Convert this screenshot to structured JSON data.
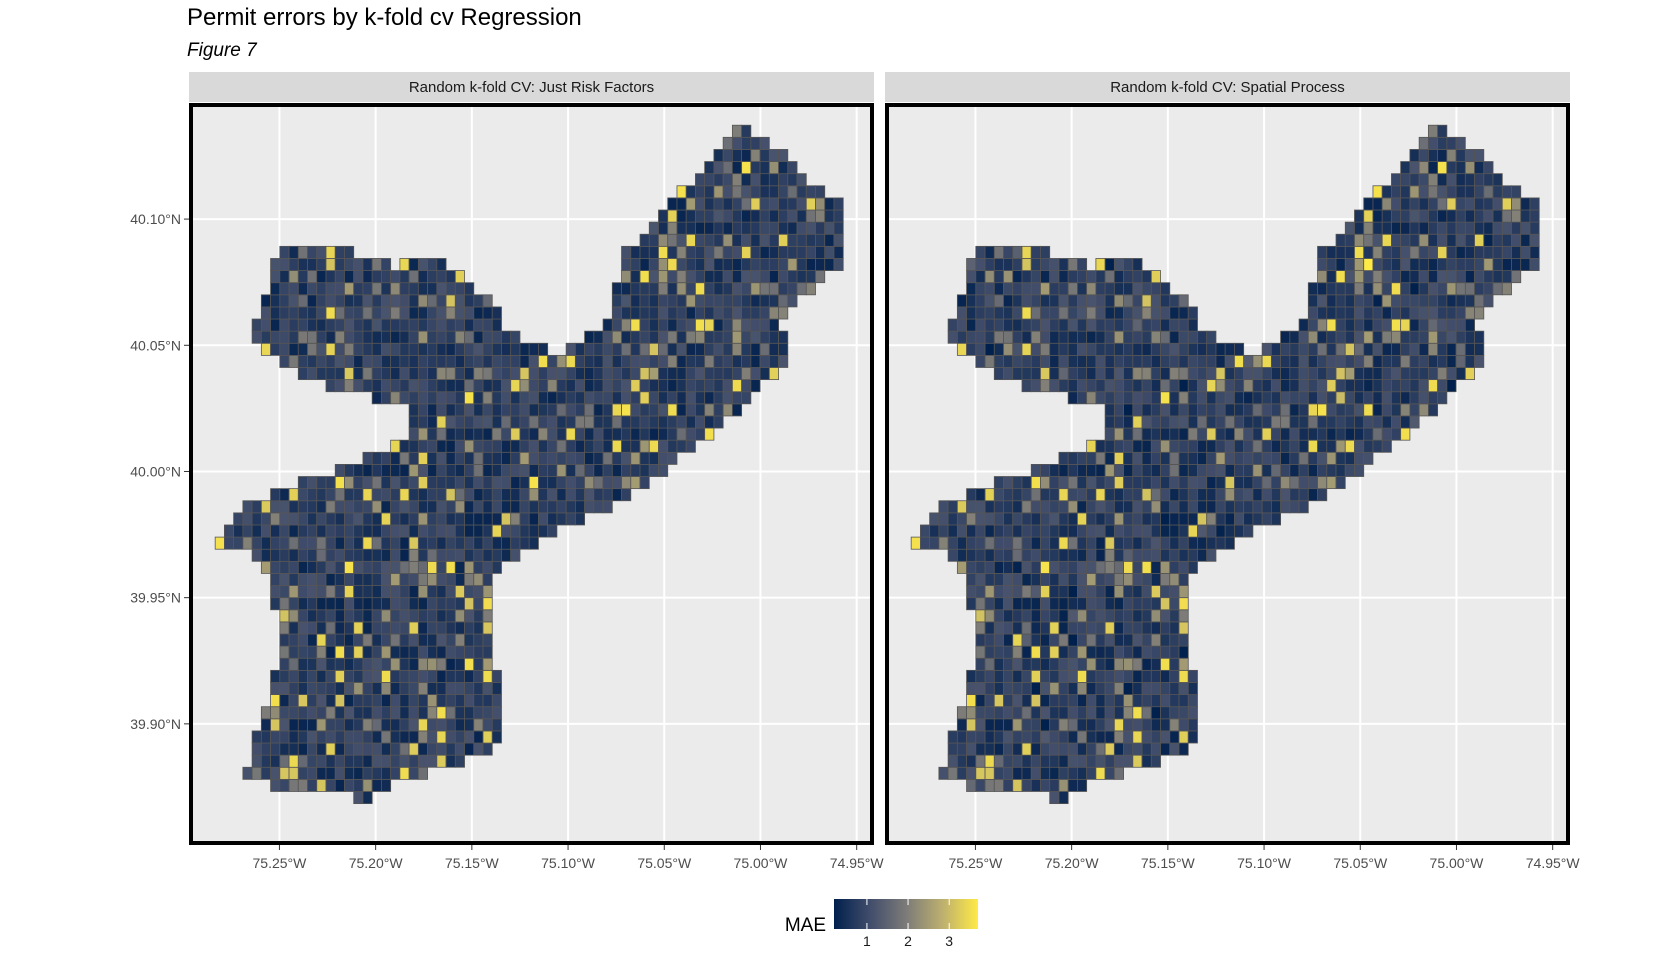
{
  "chart_data": {
    "type": "heatmap",
    "title": "Permit errors by k-fold cv Regression",
    "subtitle": "Figure 7",
    "facets": [
      "Random k-fold CV: Just Risk Factors",
      "Random k-fold CV: Spatial Process"
    ],
    "x_ticks": [
      {
        "value": -75.25,
        "label": "75.25°W"
      },
      {
        "value": -75.2,
        "label": "75.20°W"
      },
      {
        "value": -75.15,
        "label": "75.15°W"
      },
      {
        "value": -75.1,
        "label": "75.10°W"
      },
      {
        "value": -75.05,
        "label": "75.05°W"
      },
      {
        "value": -75.0,
        "label": "75.00°W"
      },
      {
        "value": -74.95,
        "label": "74.95°W"
      }
    ],
    "y_ticks": [
      {
        "value": 40.1,
        "label": "40.10°N"
      },
      {
        "value": 40.05,
        "label": "40.05°N"
      },
      {
        "value": 40.0,
        "label": "40.00°N"
      },
      {
        "value": 39.95,
        "label": "39.95°N"
      },
      {
        "value": 39.9,
        "label": "39.90°N"
      }
    ],
    "xlim": [
      -75.297,
      -74.941
    ],
    "ylim": [
      39.852,
      40.146
    ],
    "grid": true,
    "fill_variable": "MAE",
    "legend": {
      "title": "MAE",
      "position": "bottom",
      "ticks": [
        1,
        2,
        3
      ],
      "range": [
        0.2,
        3.7
      ],
      "colors": [
        "#00204d",
        "#414d6b",
        "#7c7b78",
        "#bcaf6f",
        "#ffea46"
      ]
    },
    "region_outline": [
      [
        -75.25,
        40.087
      ],
      [
        -75.225,
        40.092
      ],
      [
        -75.205,
        40.085
      ],
      [
        -75.19,
        40.081
      ],
      [
        -75.17,
        40.086
      ],
      [
        -75.155,
        40.077
      ],
      [
        -75.14,
        40.068
      ],
      [
        -75.13,
        40.055
      ],
      [
        -75.105,
        40.047
      ],
      [
        -75.08,
        40.058
      ],
      [
        -75.07,
        40.087
      ],
      [
        -75.05,
        40.104
      ],
      [
        -75.03,
        40.12
      ],
      [
        -75.012,
        40.137
      ],
      [
        -74.995,
        40.13
      ],
      [
        -74.975,
        40.116
      ],
      [
        -74.957,
        40.107
      ],
      [
        -74.955,
        40.085
      ],
      [
        -74.975,
        40.07
      ],
      [
        -74.99,
        40.06
      ],
      [
        -74.983,
        40.044
      ],
      [
        -75.0,
        40.034
      ],
      [
        -75.02,
        40.018
      ],
      [
        -75.045,
        40.003
      ],
      [
        -75.062,
        39.994
      ],
      [
        -75.08,
        39.983
      ],
      [
        -75.1,
        39.98
      ],
      [
        -75.12,
        39.968
      ],
      [
        -75.14,
        39.96
      ],
      [
        -75.14,
        39.935
      ],
      [
        -75.133,
        39.905
      ],
      [
        -75.14,
        39.887
      ],
      [
        -75.16,
        39.884
      ],
      [
        -75.185,
        39.878
      ],
      [
        -75.205,
        39.87
      ],
      [
        -75.225,
        39.872
      ],
      [
        -75.245,
        39.873
      ],
      [
        -75.268,
        39.88
      ],
      [
        -75.258,
        39.905
      ],
      [
        -75.25,
        39.93
      ],
      [
        -75.255,
        39.96
      ],
      [
        -75.268,
        39.968
      ],
      [
        -75.285,
        39.972
      ],
      [
        -75.27,
        39.985
      ],
      [
        -75.24,
        39.995
      ],
      [
        -75.205,
        40.005
      ],
      [
        -75.185,
        40.013
      ],
      [
        -75.18,
        40.025
      ],
      [
        -75.23,
        40.035
      ],
      [
        -75.265,
        40.05
      ],
      [
        -75.262,
        40.06
      ]
    ]
  }
}
